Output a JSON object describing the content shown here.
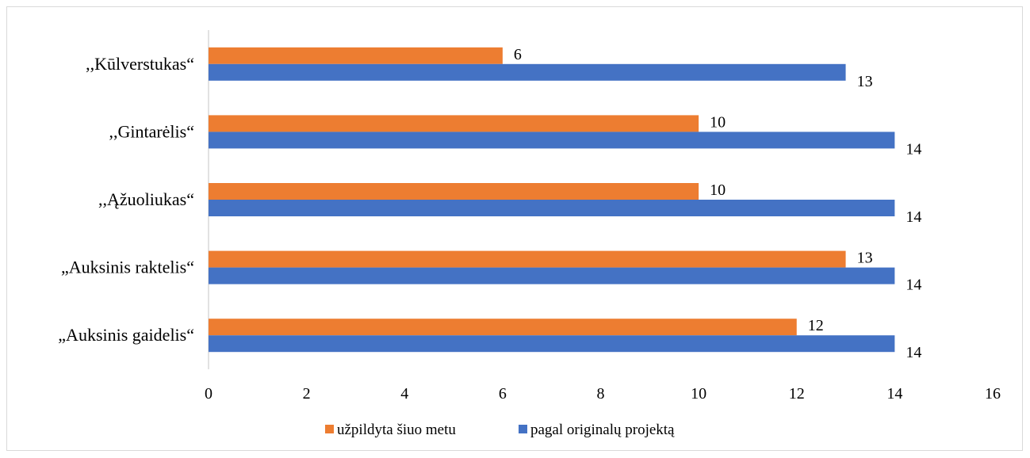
{
  "chart_data": {
    "type": "bar",
    "orientation": "horizontal",
    "categories": [
      "„Auksinis gaidelis“",
      "„Auksinis raktelis“",
      ",,Ąžuoliukas“",
      ",,Gintarėlis“",
      ",,Kūlverstukas“"
    ],
    "series": [
      {
        "name": "užpildyta šiuo metu",
        "color": "#ED7D31",
        "values": [
          12,
          13,
          10,
          10,
          6
        ]
      },
      {
        "name": "pagal originalų projektą",
        "color": "#4472C4",
        "values": [
          14,
          14,
          14,
          14,
          13
        ]
      }
    ],
    "xlim": [
      0,
      16
    ],
    "xticks": [
      0,
      2,
      4,
      6,
      8,
      10,
      12,
      14,
      16
    ],
    "grid": false,
    "legend_position": "bottom"
  }
}
